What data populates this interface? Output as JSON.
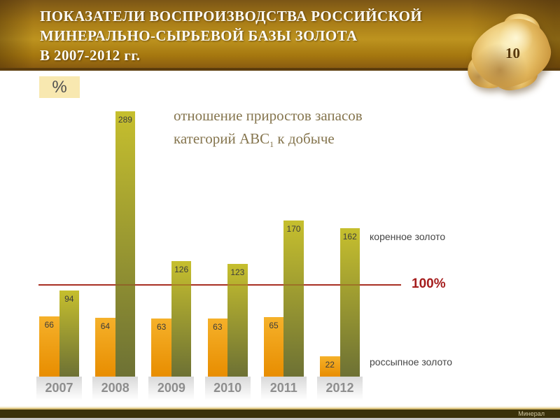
{
  "header": {
    "title_lines": [
      "ПОКАЗАТЕЛИ ВОСПРОИЗВОДСТВА РОССИЙСКОЙ",
      "МИНЕРАЛЬНО-СЫРЬЕВОЙ БАЗЫ ЗОЛОТА",
      "В 2007-2012 гг."
    ],
    "slide_number": "10",
    "nugget_icon": "gold-nugget"
  },
  "chart_data": {
    "type": "bar",
    "title_line1": "отношение приростов запасов",
    "title_line2": {
      "main": "категорий АВС",
      "sub": "1",
      "tail": " к добыче"
    },
    "unit_label": "%",
    "categories": [
      "2007",
      "2008",
      "2009",
      "2010",
      "2011",
      "2012"
    ],
    "series": [
      {
        "key": "placer-gold",
        "name": "россыпное золото",
        "values": [
          66,
          64,
          63,
          63,
          65,
          22
        ],
        "color_top": "#f5b12a",
        "color_bottom": "#e88d00"
      },
      {
        "key": "lode-gold",
        "name": "коренное золото",
        "values": [
          94,
          289,
          126,
          123,
          170,
          162
        ],
        "color_top": "#c6bf2e",
        "color_bottom": "#6d7134"
      }
    ],
    "reference_line": {
      "value": 100,
      "label": "100%",
      "color": "#b2392b"
    },
    "ylim": [
      0,
      300
    ],
    "grid": false,
    "legend_position": "right"
  },
  "footer": {
    "brand": "Минерал"
  },
  "colors": {
    "header_gold_dark": "#7b5516",
    "header_gold_light": "#bd921f",
    "accent_red": "#a51d1d",
    "chart_title_text": "#85754e",
    "year_text": "#8e8e8e"
  }
}
